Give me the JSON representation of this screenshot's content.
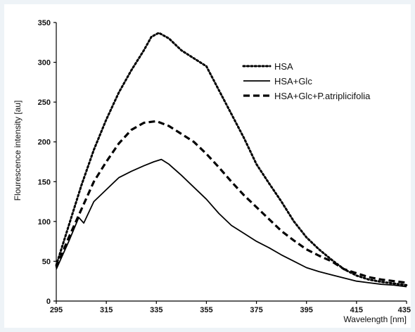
{
  "chart_data": {
    "type": "line",
    "title": "",
    "xlabel": "Wavelength [nm]",
    "ylabel": "Flourescence intensity [au]",
    "xlim": [
      295,
      435
    ],
    "ylim": [
      0,
      350
    ],
    "xticks": [
      295,
      315,
      335,
      355,
      375,
      395,
      415,
      435
    ],
    "yticks": [
      0,
      50,
      100,
      150,
      200,
      250,
      300,
      350
    ],
    "grid": false,
    "legend_position": "top-right",
    "series": [
      {
        "name": "HSA",
        "style": "dotted",
        "color": "#000000",
        "x": [
          295,
          300,
          305,
          310,
          315,
          320,
          325,
          330,
          333,
          336,
          340,
          345,
          350,
          355,
          360,
          365,
          370,
          375,
          380,
          385,
          390,
          395,
          400,
          405,
          410,
          415,
          420,
          425,
          430,
          435
        ],
        "y": [
          45,
          95,
          145,
          190,
          228,
          262,
          290,
          315,
          332,
          337,
          330,
          315,
          305,
          295,
          265,
          235,
          205,
          172,
          148,
          125,
          100,
          80,
          65,
          52,
          40,
          32,
          27,
          24,
          22,
          20
        ]
      },
      {
        "name": "HSA+Glc",
        "style": "solid",
        "color": "#000000",
        "x": [
          295,
          300,
          304,
          306,
          310,
          315,
          320,
          325,
          330,
          334,
          337,
          340,
          345,
          350,
          355,
          360,
          365,
          370,
          375,
          380,
          385,
          390,
          395,
          400,
          405,
          410,
          415,
          420,
          425,
          430,
          435
        ],
        "y": [
          40,
          75,
          105,
          98,
          125,
          140,
          155,
          163,
          170,
          175,
          178,
          172,
          158,
          143,
          128,
          110,
          95,
          85,
          75,
          67,
          58,
          50,
          42,
          37,
          33,
          29,
          25,
          23,
          21,
          20,
          18
        ]
      },
      {
        "name": "HSA+Glc+P.atriplicifolia",
        "style": "dashed",
        "color": "#000000",
        "x": [
          295,
          300,
          305,
          310,
          315,
          320,
          325,
          330,
          335,
          340,
          345,
          350,
          355,
          360,
          365,
          370,
          375,
          380,
          385,
          390,
          395,
          400,
          405,
          410,
          415,
          420,
          425,
          430,
          435
        ],
        "y": [
          42,
          80,
          115,
          150,
          175,
          198,
          215,
          224,
          226,
          220,
          210,
          200,
          185,
          168,
          150,
          133,
          118,
          103,
          88,
          76,
          65,
          57,
          50,
          40,
          35,
          30,
          27,
          25,
          23
        ]
      }
    ]
  }
}
